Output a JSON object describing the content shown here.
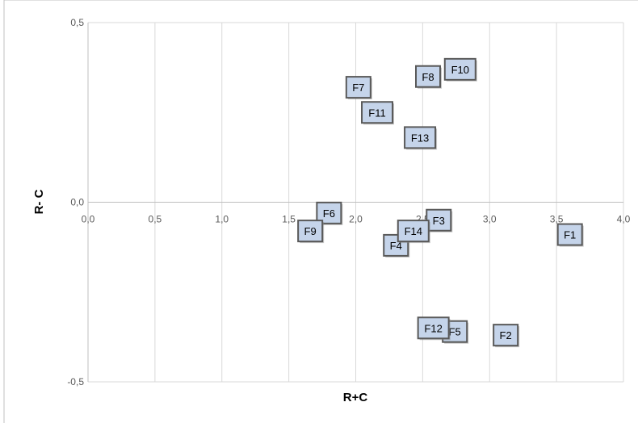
{
  "chart_data": {
    "type": "scatter",
    "xlabel": "R+C",
    "ylabel": "R- C",
    "xlim": [
      0.0,
      4.0
    ],
    "ylim": [
      -0.5,
      0.5
    ],
    "x_ticks": [
      "0,0",
      "0,5",
      "1,0",
      "1,5",
      "2,0",
      "2,5",
      "3,0",
      "3,5",
      "4,0"
    ],
    "y_ticks": [
      "0,5",
      "0,0",
      "-0,5"
    ],
    "x_tick_values": [
      0,
      0.5,
      1.0,
      1.5,
      2.0,
      2.5,
      3.0,
      3.5,
      4.0
    ],
    "y_tick_values": [
      0.5,
      0.0,
      -0.5
    ],
    "grid": true,
    "marker_fill": "#c5d4ea",
    "marker_stroke": "#595959",
    "points": [
      {
        "label": "F1",
        "x": 3.6,
        "y": -0.09
      },
      {
        "label": "F2",
        "x": 3.12,
        "y": -0.37
      },
      {
        "label": "F3",
        "x": 2.62,
        "y": -0.05
      },
      {
        "label": "F4",
        "x": 2.3,
        "y": -0.12
      },
      {
        "label": "F5",
        "x": 2.74,
        "y": -0.36
      },
      {
        "label": "F6",
        "x": 1.8,
        "y": -0.03
      },
      {
        "label": "F7",
        "x": 2.02,
        "y": 0.32
      },
      {
        "label": "F8",
        "x": 2.54,
        "y": 0.35
      },
      {
        "label": "F9",
        "x": 1.66,
        "y": -0.08
      },
      {
        "label": "F10",
        "x": 2.78,
        "y": 0.37
      },
      {
        "label": "F11",
        "x": 2.16,
        "y": 0.25
      },
      {
        "label": "F12",
        "x": 2.58,
        "y": -0.35
      },
      {
        "label": "F13",
        "x": 2.48,
        "y": 0.18
      },
      {
        "label": "F14",
        "x": 2.43,
        "y": -0.08
      }
    ]
  }
}
